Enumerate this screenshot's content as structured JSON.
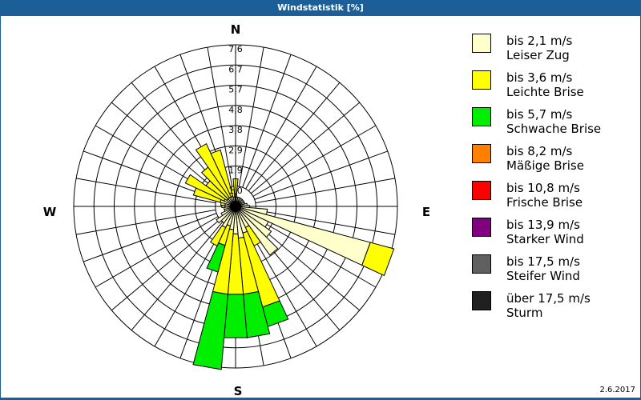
{
  "header": {
    "title": "Windstatistik [%]"
  },
  "footer": {
    "date": "2.6.2017"
  },
  "compass": {
    "n": "N",
    "e": "E",
    "s": "S",
    "w": "W"
  },
  "legend": [
    {
      "range": "bis 2,1 m/s",
      "name": "Leiser Zug",
      "color": "#ffffcc"
    },
    {
      "range": "bis 3,6 m/s",
      "name": "Leichte Brise",
      "color": "#ffff00"
    },
    {
      "range": "bis 5,7 m/s",
      "name": "Schwache Brise",
      "color": "#00ee00"
    },
    {
      "range": "bis 8,2 m/s",
      "name": "Mäßige Brise",
      "color": "#ff8000"
    },
    {
      "range": "bis 10,8 m/s",
      "name": "Frische Brise",
      "color": "#ff0000"
    },
    {
      "range": "bis 13,9 m/s",
      "name": "Starker Wind",
      "color": "#800080"
    },
    {
      "range": "bis 17,5 m/s",
      "name": "Steifer Wind",
      "color": "#606060"
    },
    {
      "range": "über 17,5 m/s",
      "name": "Sturm",
      "color": "#202020"
    }
  ],
  "chart_data": {
    "type": "wind-rose",
    "title": "Windstatistik [%]",
    "ring_labels": [
      "1,0",
      "1,9",
      "2,9",
      "3,8",
      "4,8",
      "5,7",
      "6,7",
      "7,6"
    ],
    "rmax": 7.6,
    "sector_width_deg": 10,
    "series_names": [
      "bis 2,1 m/s",
      "bis 3,6 m/s",
      "bis 5,7 m/s"
    ],
    "sectors": [
      {
        "dir": 0,
        "values": [
          0.55,
          0.75,
          0
        ]
      },
      {
        "dir": 10,
        "values": [
          0.45,
          0,
          0
        ]
      },
      {
        "dir": 20,
        "values": [
          0.45,
          0,
          0
        ]
      },
      {
        "dir": 30,
        "values": [
          0.45,
          0,
          0
        ]
      },
      {
        "dir": 40,
        "values": [
          0.45,
          0,
          0
        ]
      },
      {
        "dir": 50,
        "values": [
          0.45,
          0,
          0
        ]
      },
      {
        "dir": 60,
        "values": [
          0.45,
          0,
          0
        ]
      },
      {
        "dir": 70,
        "values": [
          0.45,
          0,
          0
        ]
      },
      {
        "dir": 80,
        "values": [
          0.55,
          0,
          0
        ]
      },
      {
        "dir": 90,
        "values": [
          0.65,
          0,
          0
        ]
      },
      {
        "dir": 100,
        "values": [
          1.5,
          0,
          0
        ]
      },
      {
        "dir": 110,
        "values": [
          6.55,
          1.15,
          0
        ]
      },
      {
        "dir": 120,
        "values": [
          1.7,
          0,
          0
        ]
      },
      {
        "dir": 130,
        "values": [
          2.05,
          0,
          0
        ]
      },
      {
        "dir": 140,
        "values": [
          2.8,
          0,
          0
        ]
      },
      {
        "dir": 150,
        "values": [
          1.1,
          0.95,
          0
        ]
      },
      {
        "dir": 160,
        "values": [
          1.3,
          3.6,
          0.95
        ]
      },
      {
        "dir": 170,
        "values": [
          1.5,
          2.65,
          2.05
        ]
      },
      {
        "dir": 180,
        "values": [
          1.3,
          2.85,
          2.05
        ]
      },
      {
        "dir": 190,
        "values": [
          1.1,
          3.05,
          3.55
        ]
      },
      {
        "dir": 200,
        "values": [
          0.95,
          0.95,
          1.3
        ]
      },
      {
        "dir": 210,
        "values": [
          1.1,
          0.95,
          0
        ]
      },
      {
        "dir": 220,
        "values": [
          0.95,
          0,
          0
        ]
      },
      {
        "dir": 230,
        "values": [
          1.1,
          0,
          0
        ]
      },
      {
        "dir": 240,
        "values": [
          0.75,
          0,
          0
        ]
      },
      {
        "dir": 250,
        "values": [
          0.55,
          0,
          0
        ]
      },
      {
        "dir": 260,
        "values": [
          0.55,
          0,
          0
        ]
      },
      {
        "dir": 270,
        "values": [
          0.5,
          0.15,
          0
        ]
      },
      {
        "dir": 280,
        "values": [
          0.5,
          0.2,
          0
        ]
      },
      {
        "dir": 290,
        "values": [
          0.75,
          1.3,
          0
        ]
      },
      {
        "dir": 300,
        "values": [
          0.6,
          2.0,
          0
        ]
      },
      {
        "dir": 310,
        "values": [
          0.5,
          1.2,
          0
        ]
      },
      {
        "dir": 320,
        "values": [
          0.5,
          1.75,
          0
        ]
      },
      {
        "dir": 330,
        "values": [
          0.5,
          2.75,
          0
        ]
      },
      {
        "dir": 340,
        "values": [
          0.5,
          2.25,
          0
        ]
      },
      {
        "dir": 350,
        "values": [
          0.45,
          0.35,
          0
        ]
      }
    ]
  }
}
